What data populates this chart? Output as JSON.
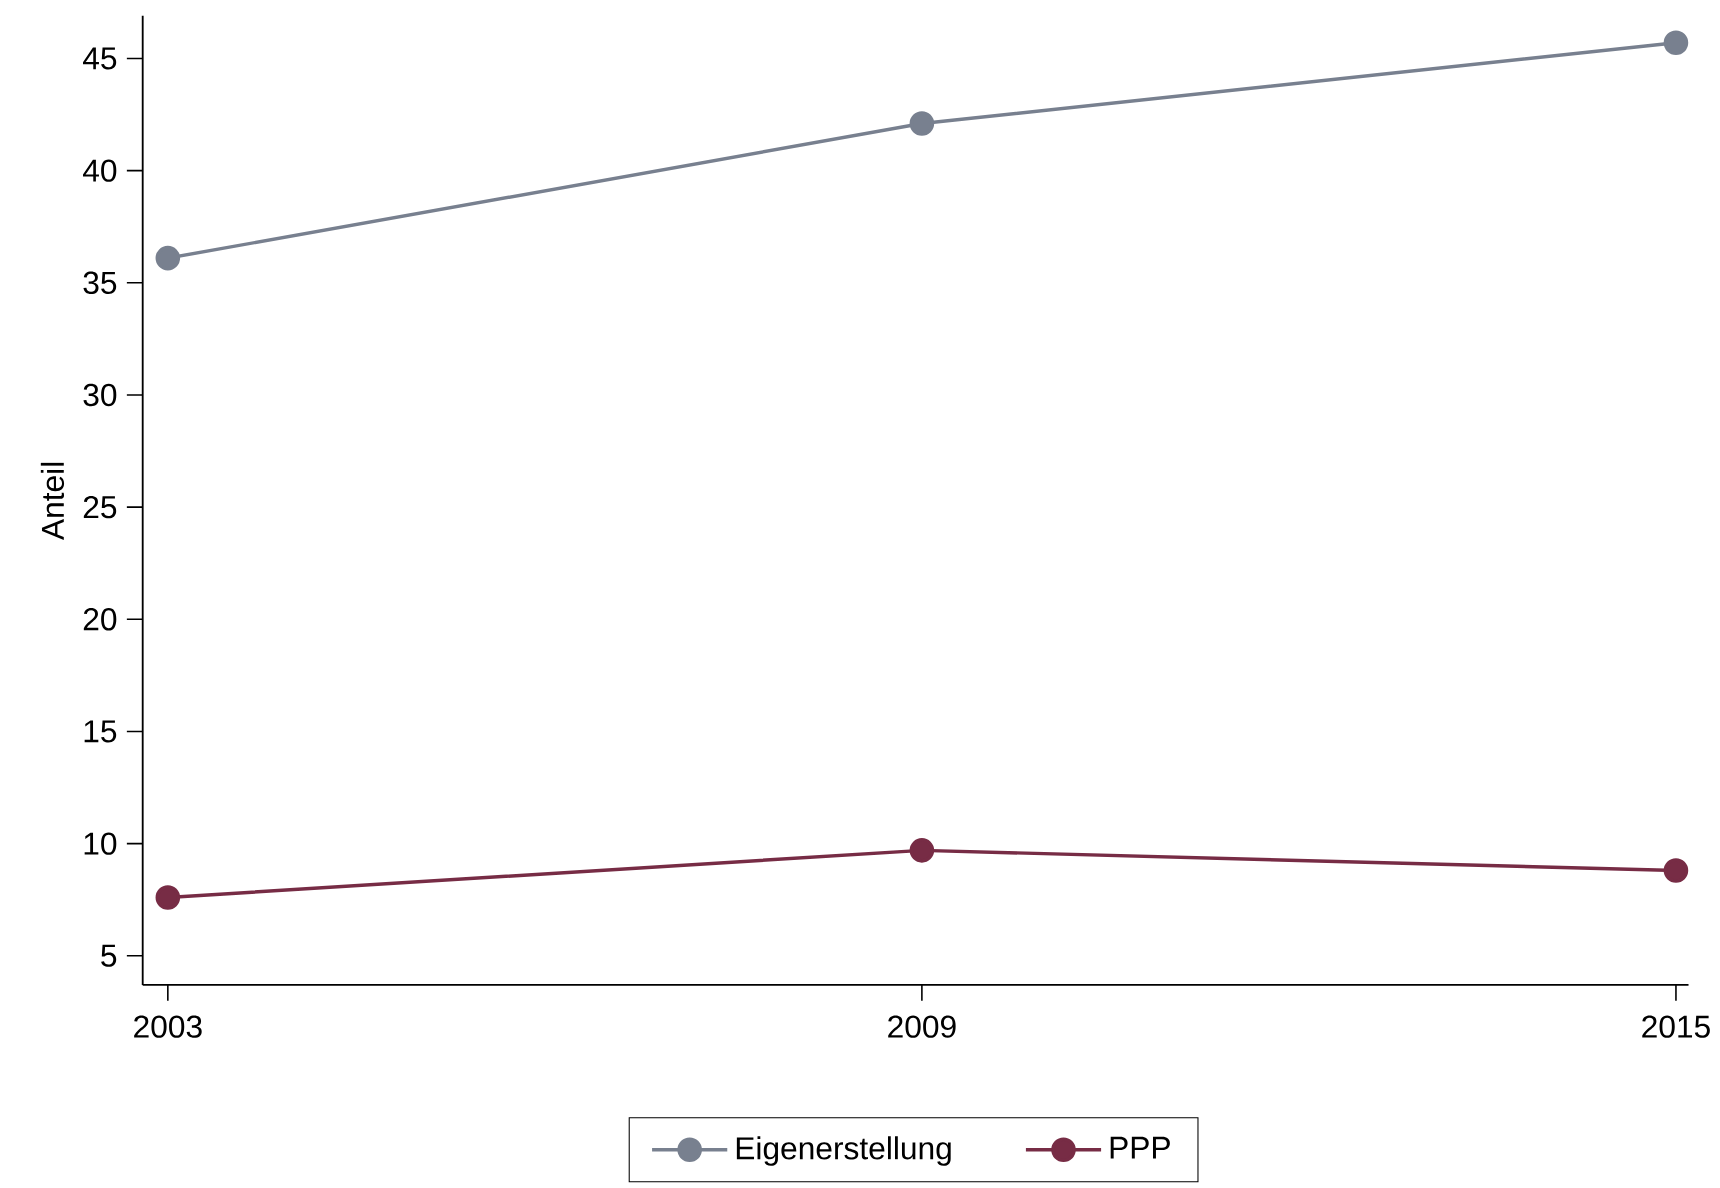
{
  "chart_data": {
    "type": "line",
    "ylabel": "Anteil",
    "x": [
      2003,
      2009,
      2015
    ],
    "series": [
      {
        "name": "Eigenerstellung",
        "color": "#78808f",
        "values": [
          36.1,
          42.1,
          45.7
        ]
      },
      {
        "name": "PPP",
        "color": "#772c45",
        "values": [
          7.6,
          9.7,
          8.8
        ]
      }
    ],
    "xlim": [
      2002.8,
      2015.1
    ],
    "ylim": [
      3.7,
      46.9
    ],
    "xticks": [
      2003,
      2009,
      2015
    ],
    "yticks": [
      5,
      10,
      15,
      20,
      25,
      30,
      35,
      40,
      45
    ],
    "legend": "bottom",
    "marker": "circle",
    "line_style": "solid"
  }
}
